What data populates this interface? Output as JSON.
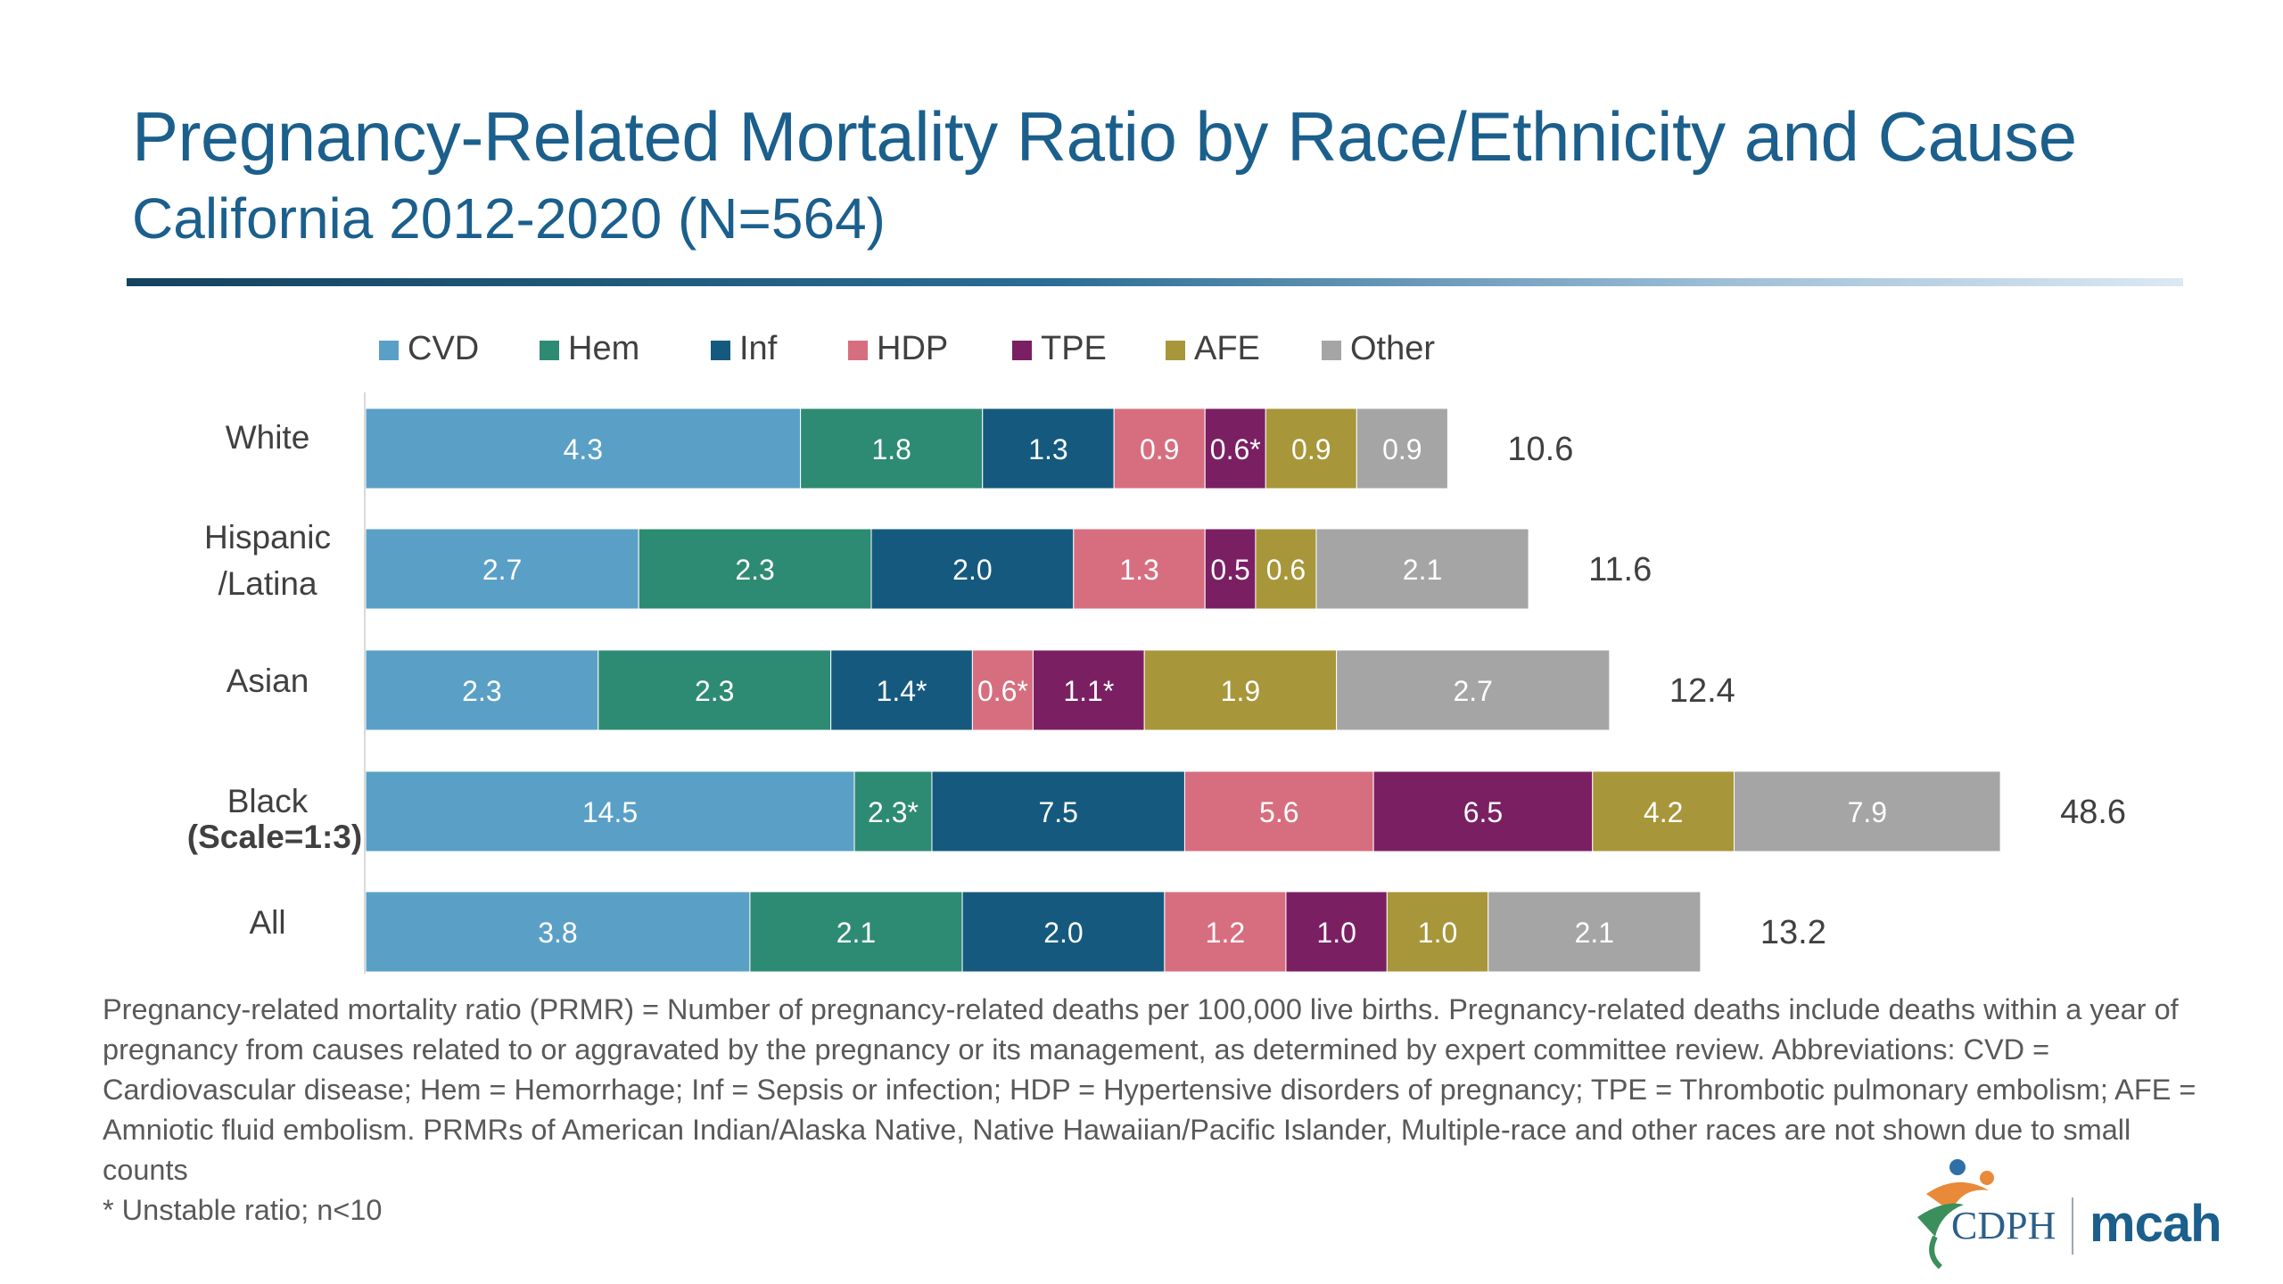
{
  "header": {
    "title": "Pregnancy-Related Mortality Ratio by Race/Ethnicity and Cause",
    "subtitle": "California 2012-2020 (N=564)"
  },
  "chart_data": {
    "type": "bar",
    "orientation": "horizontal",
    "stacked": true,
    "legend_position": "top",
    "grid": false,
    "categories": [
      "White",
      "Hispanic\n/Latina",
      "Asian",
      "Black\n(Scale=1:3)",
      "All"
    ],
    "totals": [
      "10.6",
      "11.6",
      "12.4",
      "48.6",
      "13.2"
    ],
    "scale_factors": [
      1,
      1,
      1,
      0.3333,
      1
    ],
    "series": [
      {
        "name": "CVD",
        "color": "#5aa0c6",
        "values": [
          4.3,
          2.7,
          2.3,
          14.5,
          3.8
        ],
        "labels": [
          "4.3",
          "2.7",
          "2.3",
          "14.5",
          "3.8"
        ]
      },
      {
        "name": "Hem",
        "color": "#2e8b73",
        "values": [
          1.8,
          2.3,
          2.3,
          2.3,
          2.1
        ],
        "labels": [
          "1.8",
          "2.3",
          "2.3",
          "2.3*",
          "2.1"
        ]
      },
      {
        "name": "Inf",
        "color": "#155a7e",
        "values": [
          1.3,
          2.0,
          1.4,
          7.5,
          2.0
        ],
        "labels": [
          "1.3",
          "2.0",
          "1.4*",
          "7.5",
          "2.0"
        ]
      },
      {
        "name": "HDP",
        "color": "#d76e7f",
        "values": [
          0.9,
          1.3,
          0.6,
          5.6,
          1.2
        ],
        "labels": [
          "0.9",
          "1.3",
          "0.6*",
          "5.6",
          "1.2"
        ]
      },
      {
        "name": "TPE",
        "color": "#7b1f63",
        "values": [
          0.6,
          0.5,
          1.1,
          6.5,
          1.0
        ],
        "labels": [
          "0.6*",
          "0.5",
          "1.1*",
          "6.5",
          "1.0"
        ]
      },
      {
        "name": "AFE",
        "color": "#a8963a",
        "values": [
          0.9,
          0.6,
          1.9,
          4.2,
          1.0
        ],
        "labels": [
          "0.9",
          "0.6",
          "1.9",
          "4.2",
          "1.0"
        ]
      },
      {
        "name": "Other",
        "color": "#a5a5a5",
        "values": [
          0.9,
          2.1,
          2.7,
          7.9,
          2.1
        ],
        "labels": [
          "0.9",
          "2.1",
          "2.7",
          "7.9",
          "2.1"
        ]
      }
    ]
  },
  "footnote": {
    "definition": "Pregnancy-related mortality ratio (PRMR) = Number of pregnancy-related deaths per 100,000 live births. Pregnancy-related deaths include deaths within a year of pregnancy from causes related to or aggravated by the pregnancy or its management, as determined by expert committee review. Abbreviations: CVD = Cardiovascular disease; Hem = Hemorrhage; Inf = Sepsis or infection; HDP = Hypertensive disorders of pregnancy; TPE = Thrombotic pulmonary embolism; AFE = Amniotic fluid embolism. PRMRs of American Indian/Alaska Native, Native Hawaiian/Pacific Islander, Multiple-race and other races are not shown due to small counts",
    "unstable": "* Unstable ratio; n<10"
  },
  "logos": {
    "cdph": "CDPH",
    "mcah": "mcah"
  }
}
